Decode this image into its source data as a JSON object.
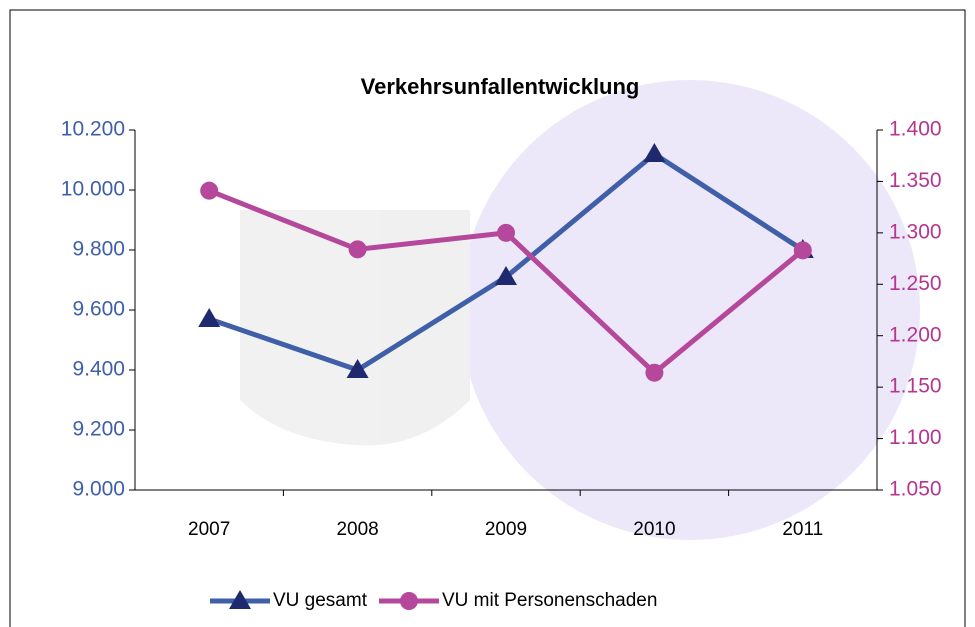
{
  "chart_data": {
    "type": "line",
    "title": "Verkehrsunfallentwicklung",
    "categories": [
      "2007",
      "2008",
      "2009",
      "2010",
      "2011"
    ],
    "series": [
      {
        "name": "VU gesamt",
        "color": "#3f5fa8",
        "marker": "triangle",
        "values": [
          9570,
          9400,
          9710,
          10120,
          9800
        ]
      },
      {
        "name": "VU mit Personenschaden",
        "color": "#b5489b",
        "marker": "circle",
        "axis": "y2",
        "values": [
          1341,
          1284,
          1300,
          1164,
          1283
        ]
      }
    ],
    "ylim": [
      9000,
      10200
    ],
    "yticks": [
      {
        "value": 9000,
        "label": "9.000"
      },
      {
        "value": 9200,
        "label": "9.200"
      },
      {
        "value": 9400,
        "label": "9.400"
      },
      {
        "value": 9600,
        "label": "9.600"
      },
      {
        "value": 9800,
        "label": "9.800"
      },
      {
        "value": 10000,
        "label": "10.000"
      },
      {
        "value": 10200,
        "label": "10.200"
      }
    ],
    "y2lim": [
      1050,
      1400
    ],
    "y2ticks": [
      {
        "value": 1050,
        "label": "1.050"
      },
      {
        "value": 1100,
        "label": "1.100"
      },
      {
        "value": 1150,
        "label": "1.150"
      },
      {
        "value": 1200,
        "label": "1.200"
      },
      {
        "value": 1250,
        "label": "1.250"
      },
      {
        "value": 1300,
        "label": "1.300"
      },
      {
        "value": 1350,
        "label": "1.350"
      },
      {
        "value": 1400,
        "label": "1.400"
      }
    ],
    "legend": "bottom"
  }
}
